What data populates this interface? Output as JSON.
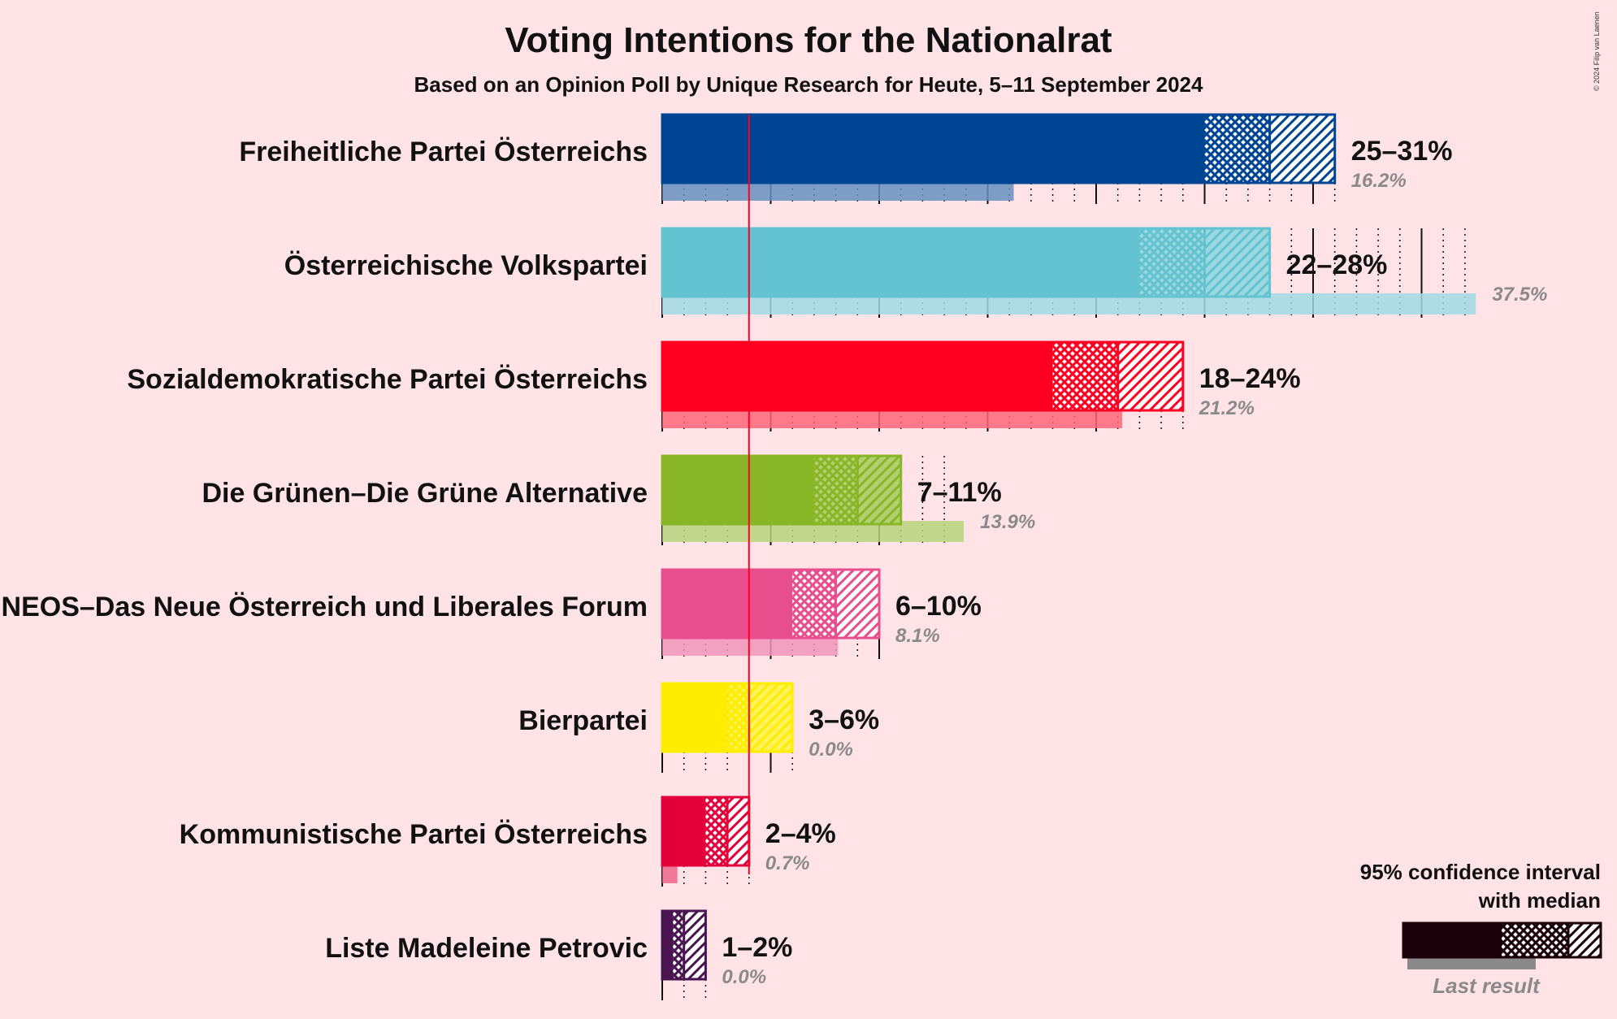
{
  "chart_data": {
    "type": "bar",
    "orientation": "horizontal",
    "title": "Voting Intentions for the Nationalrat",
    "subtitle": "Based on an Opinion Poll by Unique Research for Heute, 5–11 September 2024",
    "copyright": "© 2024 Filip van Laenen",
    "threshold": 4,
    "xlim": [
      0,
      38
    ],
    "parties": [
      {
        "name": "Freiheitliche Partei Österreichs",
        "ci_low": 25,
        "median": 28,
        "ci_high": 31,
        "range_label": "25–31%",
        "last_result": 16.2,
        "last_label": "16.2%",
        "color": "#004494"
      },
      {
        "name": "Österreichische Volkspartei",
        "ci_low": 22,
        "median": 25,
        "ci_high": 28,
        "range_label": "22–28%",
        "last_result": 37.5,
        "last_label": "37.5%",
        "color": "#63C3D0"
      },
      {
        "name": "Sozialdemokratische Partei Österreichs",
        "ci_low": 18,
        "median": 21,
        "ci_high": 24,
        "range_label": "18–24%",
        "last_result": 21.2,
        "last_label": "21.2%",
        "color": "#FF0022"
      },
      {
        "name": "Die Grünen–Die Grüne Alternative",
        "ci_low": 7,
        "median": 9,
        "ci_high": 11,
        "range_label": "7–11%",
        "last_result": 13.9,
        "last_label": "13.9%",
        "color": "#88B626"
      },
      {
        "name": "NEOS–Das Neue Österreich und Liberales Forum",
        "ci_low": 6,
        "median": 8,
        "ci_high": 10,
        "range_label": "6–10%",
        "last_result": 8.1,
        "last_label": "8.1%",
        "color": "#E84E8C"
      },
      {
        "name": "Bierpartei",
        "ci_low": 3,
        "median": 4,
        "ci_high": 6,
        "range_label": "3–6%",
        "last_result": 0.0,
        "last_label": "0.0%",
        "color": "#FFED00"
      },
      {
        "name": "Kommunistische Partei Österreichs",
        "ci_low": 2,
        "median": 3,
        "ci_high": 4,
        "range_label": "2–4%",
        "last_result": 0.7,
        "last_label": "0.7%",
        "color": "#E3003A"
      },
      {
        "name": "Liste Madeleine Petrovic",
        "ci_low": 0.5,
        "median": 1,
        "ci_high": 2,
        "range_label": "1–2%",
        "last_result": 0.0,
        "last_label": "0.0%",
        "color": "#4A1450"
      }
    ],
    "legend": {
      "line1": "95% confidence interval",
      "line2": "with median",
      "last_result": "Last result",
      "placement": "bottom-right"
    }
  }
}
